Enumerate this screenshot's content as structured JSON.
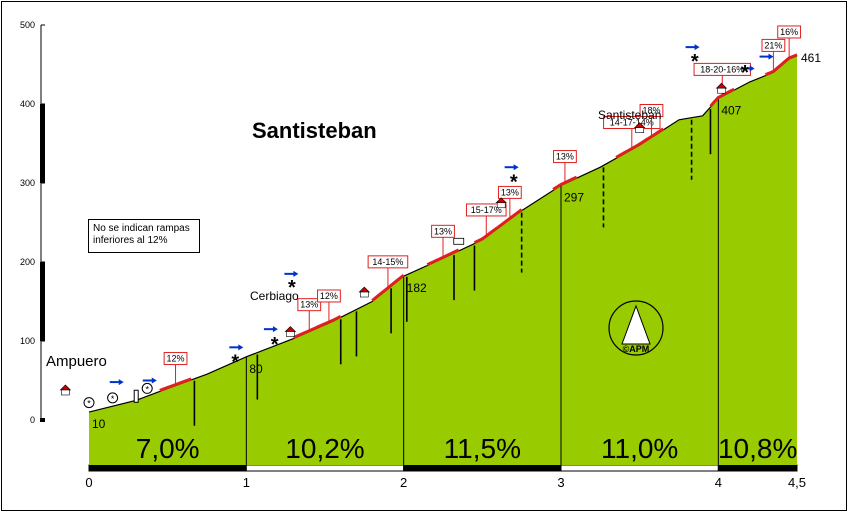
{
  "chart_data": {
    "type": "area",
    "title": "Santisteban",
    "note": "No se indican rampas inferiores al 12%",
    "xlim": [
      0,
      4.5
    ],
    "ylim": [
      0,
      500
    ],
    "x_ticks": [
      {
        "value": 0,
        "label": "0"
      },
      {
        "value": 1,
        "label": "1"
      },
      {
        "value": 2,
        "label": "2"
      },
      {
        "value": 3,
        "label": "3"
      },
      {
        "value": 4,
        "label": "4"
      },
      {
        "value": 4.5,
        "label": "4,5"
      }
    ],
    "y_ticks": [
      {
        "value": 0,
        "label": "0"
      },
      {
        "value": 100,
        "label": "100"
      },
      {
        "value": 200,
        "label": "200"
      },
      {
        "value": 300,
        "label": "300"
      },
      {
        "value": 400,
        "label": "400"
      },
      {
        "value": 500,
        "label": "500"
      }
    ],
    "profile": [
      [
        0,
        10
      ],
      [
        0.3,
        25
      ],
      [
        0.5,
        40
      ],
      [
        0.75,
        58
      ],
      [
        1,
        80
      ],
      [
        1.3,
        103
      ],
      [
        1.55,
        125
      ],
      [
        1.8,
        150
      ],
      [
        2,
        182
      ],
      [
        2.2,
        200
      ],
      [
        2.5,
        228
      ],
      [
        2.75,
        265
      ],
      [
        3,
        297
      ],
      [
        3.25,
        320
      ],
      [
        3.5,
        348
      ],
      [
        3.75,
        380
      ],
      [
        3.9,
        385
      ],
      [
        4,
        407
      ],
      [
        4.2,
        428
      ],
      [
        4.35,
        440
      ],
      [
        4.45,
        457
      ],
      [
        4.5,
        461
      ]
    ],
    "km_segments": [
      {
        "from": 0,
        "to": 1,
        "gradient": "7,0%"
      },
      {
        "from": 1,
        "to": 2,
        "gradient": "10,2%"
      },
      {
        "from": 2,
        "to": 3,
        "gradient": "11,5%"
      },
      {
        "from": 3,
        "to": 4,
        "gradient": "11,0%"
      },
      {
        "from": 4,
        "to": 4.5,
        "gradient": "10,8%"
      }
    ],
    "elevation_labels": [
      {
        "x": 0,
        "y": 10,
        "label": "10"
      },
      {
        "x": 1,
        "y": 80,
        "label": "80"
      },
      {
        "x": 2,
        "y": 182,
        "label": "182"
      },
      {
        "x": 3,
        "y": 297,
        "label": "297"
      },
      {
        "x": 4,
        "y": 407,
        "label": "407"
      },
      {
        "x": 4.5,
        "y": 461,
        "label": "461"
      }
    ],
    "places": [
      {
        "name": "Ampuero",
        "x": 0
      },
      {
        "name": "Cerbiago",
        "x": 1.3
      },
      {
        "name": "Santisteban",
        "x": 3.5
      }
    ],
    "ramps": [
      {
        "label": "12%",
        "from": 0.45,
        "to": 0.65
      },
      {
        "label": "13%",
        "from": 1.3,
        "to": 1.5
      },
      {
        "label": "12%",
        "from": 1.45,
        "to": 1.6
      },
      {
        "label": "14-15%",
        "from": 1.8,
        "to": 2.0
      },
      {
        "label": "13%",
        "from": 2.15,
        "to": 2.35
      },
      {
        "label": "15-17%",
        "from": 2.45,
        "to": 2.6
      },
      {
        "label": "13%",
        "from": 2.6,
        "to": 2.75
      },
      {
        "label": "13%",
        "from": 2.95,
        "to": 3.1
      },
      {
        "label": "14-17-14%",
        "from": 3.35,
        "to": 3.55
      },
      {
        "label": "18%",
        "from": 3.5,
        "to": 3.65
      },
      {
        "label": "18-20-16%",
        "from": 3.95,
        "to": 4.1
      },
      {
        "label": "21%",
        "from": 4.3,
        "to": 4.4
      },
      {
        "label": "16%",
        "from": 4.4,
        "to": 4.5
      }
    ],
    "logo": "©APM",
    "colors": {
      "fill": "#99cc00",
      "ramp": "#e02020",
      "outline": "#000000",
      "arrow": "#0033cc"
    }
  }
}
